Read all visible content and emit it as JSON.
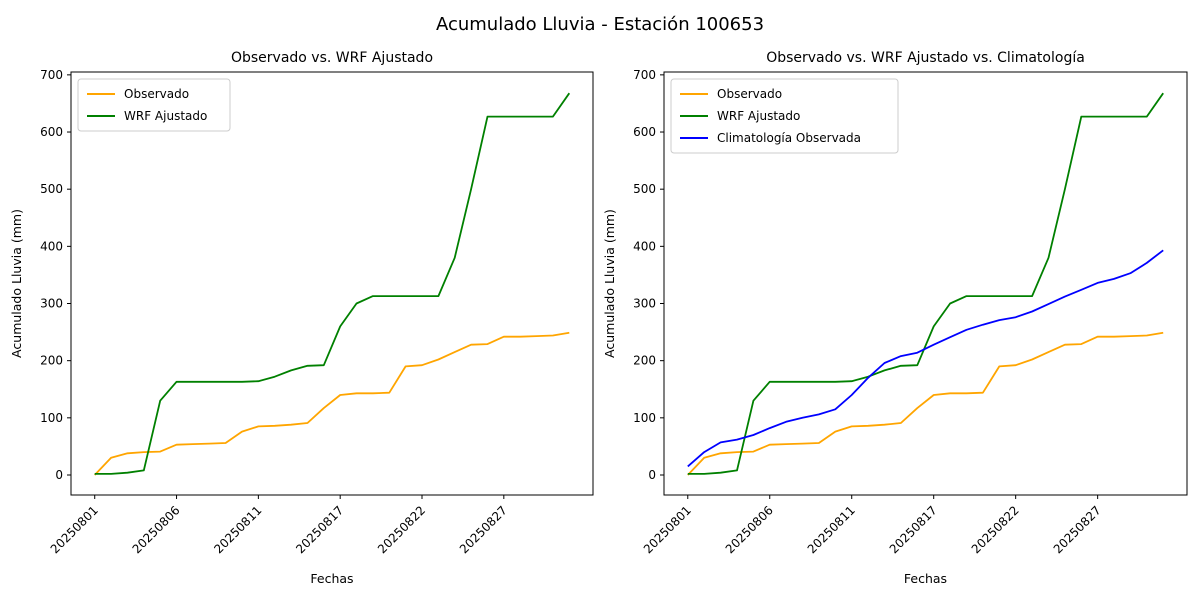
{
  "figure_title": "Acumulado Lluvia - Estación 100653",
  "chart_data": [
    {
      "type": "line",
      "title": "Observado vs. WRF Ajustado",
      "xlabel": "Fechas",
      "ylabel": "Acumulado Lluvia (mm)",
      "grid": false,
      "legend_position": "upper-left",
      "xlim": [
        -1.45,
        30.45
      ],
      "ylim": [
        -35,
        705
      ],
      "y_ticks": [
        0,
        100,
        200,
        300,
        400,
        500,
        600,
        700
      ],
      "x_tick_positions": [
        0,
        5,
        10,
        15,
        20,
        25
      ],
      "x_tick_labels": [
        "20250801",
        "20250806",
        "20250811",
        "20250817",
        "20250822",
        "20250827"
      ],
      "series": [
        {
          "name": "Observado",
          "color": "#FFA500",
          "values": [
            0,
            30,
            38,
            40,
            41,
            53,
            54,
            55,
            56,
            76,
            85,
            86,
            88,
            91,
            117,
            140,
            143,
            143,
            144,
            190,
            192,
            202,
            215,
            228,
            229,
            242,
            242,
            243,
            244,
            249
          ]
        },
        {
          "name": "WRF Ajustado",
          "color": "#008000",
          "values": [
            2,
            2,
            4,
            8,
            130,
            163,
            163,
            163,
            163,
            163,
            164,
            172,
            183,
            191,
            192,
            260,
            300,
            313,
            313,
            313,
            313,
            313,
            380,
            500,
            627,
            627,
            627,
            627,
            627,
            668
          ]
        }
      ]
    },
    {
      "type": "line",
      "title": "Observado vs. WRF Ajustado vs. Climatología",
      "xlabel": "Fechas",
      "ylabel": "Acumulado Lluvia (mm)",
      "grid": false,
      "legend_position": "upper-left",
      "xlim": [
        -1.45,
        30.45
      ],
      "ylim": [
        -35,
        705
      ],
      "y_ticks": [
        0,
        100,
        200,
        300,
        400,
        500,
        600,
        700
      ],
      "x_tick_positions": [
        0,
        5,
        10,
        15,
        20,
        25
      ],
      "x_tick_labels": [
        "20250801",
        "20250806",
        "20250811",
        "20250817",
        "20250822",
        "20250827"
      ],
      "series": [
        {
          "name": "Observado",
          "color": "#FFA500",
          "values": [
            0,
            30,
            38,
            40,
            41,
            53,
            54,
            55,
            56,
            76,
            85,
            86,
            88,
            91,
            117,
            140,
            143,
            143,
            144,
            190,
            192,
            202,
            215,
            228,
            229,
            242,
            242,
            243,
            244,
            249
          ]
        },
        {
          "name": "WRF Ajustado",
          "color": "#008000",
          "values": [
            2,
            2,
            4,
            8,
            130,
            163,
            163,
            163,
            163,
            163,
            164,
            172,
            183,
            191,
            192,
            260,
            300,
            313,
            313,
            313,
            313,
            313,
            380,
            500,
            627,
            627,
            627,
            627,
            627,
            668
          ]
        },
        {
          "name": "Climatología Observada",
          "color": "#0000FF",
          "values": [
            15,
            40,
            57,
            62,
            70,
            82,
            93,
            100,
            106,
            115,
            140,
            170,
            196,
            208,
            214,
            228,
            241,
            254,
            263,
            271,
            276,
            286,
            299,
            312,
            324,
            336,
            343,
            353,
            371,
            393
          ]
        }
      ]
    }
  ]
}
